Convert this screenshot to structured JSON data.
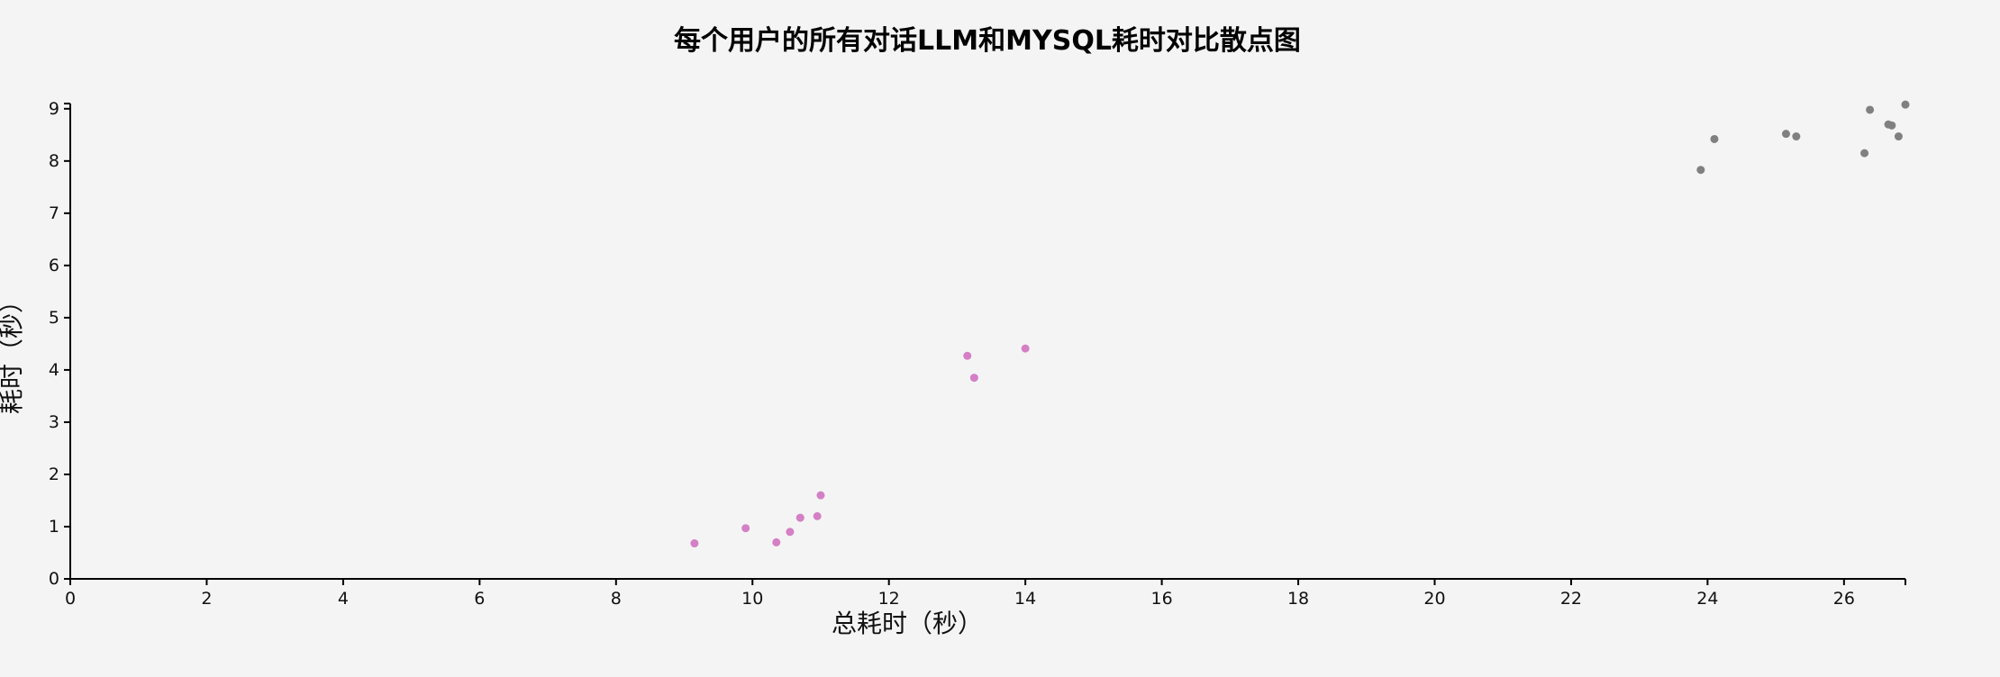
{
  "chart_data": {
    "type": "scatter",
    "title": "每个用户的所有对话LLM和MYSQL耗时对比散点图",
    "xlabel": "总耗时（秒）",
    "ylabel": "耗时（秒）",
    "xlim": [
      0,
      26.9
    ],
    "ylim": [
      0,
      9.1
    ],
    "xticks": [
      0,
      2,
      4,
      6,
      8,
      10,
      12,
      14,
      16,
      18,
      20,
      22,
      24,
      26
    ],
    "yticks": [
      0,
      1,
      2,
      3,
      4,
      5,
      6,
      7,
      8,
      9
    ],
    "grid": false,
    "series": [
      {
        "color": "#d47fc6",
        "points": [
          {
            "x": 9.15,
            "y": 0.68
          },
          {
            "x": 9.9,
            "y": 0.97
          },
          {
            "x": 10.35,
            "y": 0.7
          },
          {
            "x": 10.55,
            "y": 0.9
          },
          {
            "x": 10.7,
            "y": 1.17
          },
          {
            "x": 10.95,
            "y": 1.2
          },
          {
            "x": 11.0,
            "y": 1.6
          },
          {
            "x": 13.15,
            "y": 4.27
          },
          {
            "x": 13.25,
            "y": 3.85
          },
          {
            "x": 14.0,
            "y": 4.41
          }
        ]
      },
      {
        "color": "#808080",
        "points": [
          {
            "x": 23.9,
            "y": 7.83
          },
          {
            "x": 24.1,
            "y": 8.42
          },
          {
            "x": 25.15,
            "y": 8.52
          },
          {
            "x": 25.3,
            "y": 8.47
          },
          {
            "x": 26.3,
            "y": 8.15
          },
          {
            "x": 26.38,
            "y": 8.98
          },
          {
            "x": 26.65,
            "y": 8.7
          },
          {
            "x": 26.7,
            "y": 8.68
          },
          {
            "x": 26.8,
            "y": 8.47
          },
          {
            "x": 26.9,
            "y": 9.08
          }
        ]
      }
    ]
  }
}
